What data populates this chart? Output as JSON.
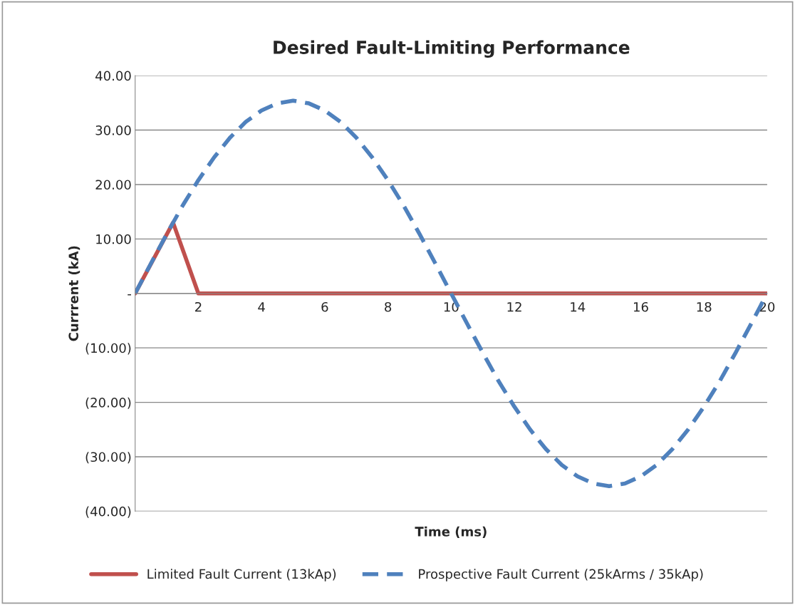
{
  "chart_data": {
    "type": "line",
    "title": "Desired Fault-Limiting Performance",
    "xlabel": "Time (ms)",
    "ylabel": "Currrent (kA)",
    "xlim": [
      0,
      20
    ],
    "xticks": [
      2,
      4,
      6,
      8,
      10,
      12,
      14,
      16,
      18,
      20
    ],
    "ylim": [
      -40,
      40
    ],
    "yticks": [
      {
        "value": -40,
        "label": "(40.00)"
      },
      {
        "value": -30,
        "label": "(30.00)"
      },
      {
        "value": -20,
        "label": "(20.00)"
      },
      {
        "value": -10,
        "label": "(10.00)"
      },
      {
        "value": 0,
        "label": "-"
      },
      {
        "value": 10,
        "label": "10.00"
      },
      {
        "value": 20,
        "label": "20.00"
      },
      {
        "value": 30,
        "label": "30.00"
      },
      {
        "value": 40,
        "label": "40.00"
      }
    ],
    "grid": "y",
    "legend": "bottom",
    "series": [
      {
        "name": "Limited Fault Current (13kAp)",
        "color": "#c0504d",
        "line_style": "solid",
        "x": [
          0,
          1.2,
          2,
          20
        ],
        "values": [
          0,
          13,
          0,
          0
        ]
      },
      {
        "name": "Prospective Fault Current (25kArms / 35kAp)",
        "color": "#4f81bd",
        "line_style": "dashed",
        "x": [
          0,
          0.5,
          1,
          1.5,
          2,
          2.5,
          3,
          3.5,
          4,
          4.5,
          5,
          5.5,
          6,
          6.5,
          7,
          7.5,
          8,
          8.5,
          9,
          9.5,
          10,
          10.5,
          11,
          11.5,
          12,
          12.5,
          13,
          13.5,
          14,
          14.5,
          15,
          15.5,
          16,
          16.5,
          17,
          17.5,
          18,
          18.5,
          19,
          19.5,
          20
        ],
        "values": [
          0,
          5.5,
          10.9,
          16.1,
          20.8,
          25.0,
          28.6,
          31.5,
          33.6,
          34.9,
          35.4,
          34.9,
          33.6,
          31.5,
          28.6,
          25.0,
          20.8,
          16.1,
          10.9,
          5.5,
          0,
          -5.5,
          -10.9,
          -16.1,
          -20.8,
          -25.0,
          -28.6,
          -31.5,
          -33.6,
          -34.9,
          -35.4,
          -34.9,
          -33.6,
          -31.5,
          -28.6,
          -25.0,
          -20.8,
          -16.1,
          -10.9,
          -5.5,
          0
        ]
      }
    ]
  }
}
